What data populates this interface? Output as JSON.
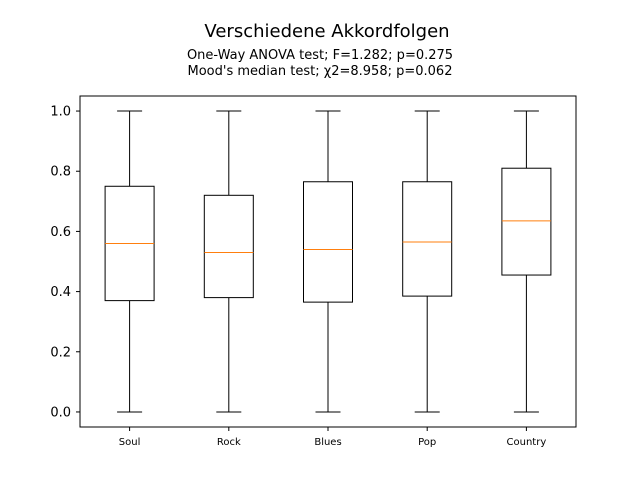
{
  "chart_data": {
    "type": "boxplot",
    "title": "Verschiedene Akkordfolgen",
    "subtitle_lines": [
      "One-Way ANOVA test; F=1.282; p=0.275",
      "Mood's median test; χ2=8.958; p=0.062"
    ],
    "xlabel": "",
    "ylabel": "",
    "ylim": [
      -0.05,
      1.05
    ],
    "yticks": [
      "0.0",
      "0.2",
      "0.4",
      "0.6",
      "0.8",
      "1.0"
    ],
    "grid": false,
    "categories": [
      "Soul",
      "Rock",
      "Blues",
      "Pop",
      "Country"
    ],
    "boxes": [
      {
        "min": 0.0,
        "q1": 0.37,
        "median": 0.56,
        "q3": 0.75,
        "max": 1.0
      },
      {
        "min": 0.0,
        "q1": 0.38,
        "median": 0.53,
        "q3": 0.72,
        "max": 1.0
      },
      {
        "min": 0.0,
        "q1": 0.365,
        "median": 0.54,
        "q3": 0.765,
        "max": 1.0
      },
      {
        "min": 0.0,
        "q1": 0.385,
        "median": 0.565,
        "q3": 0.765,
        "max": 1.0
      },
      {
        "min": 0.0,
        "q1": 0.455,
        "median": 0.635,
        "q3": 0.81,
        "max": 1.0
      }
    ],
    "colors": {
      "box": "#000000",
      "median": "#ff7f0e",
      "axes": "#000000"
    }
  }
}
